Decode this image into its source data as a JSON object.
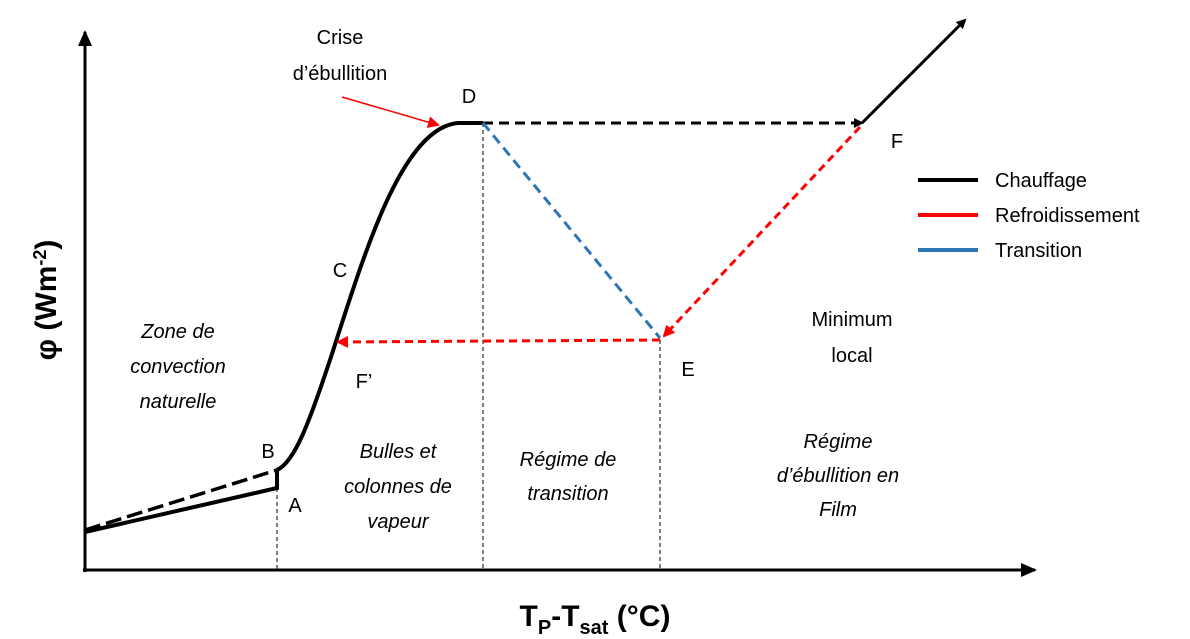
{
  "axes": {
    "y_label": "φ (Wm",
    "y_label_sup": "-2",
    "y_label_end": ")",
    "x_label_t": "T",
    "x_sub_p": "P",
    "x_mid": "-T",
    "x_sub_sat": "sat",
    "x_end": " (°C)"
  },
  "points": {
    "a": "A",
    "b": "B",
    "c": "C",
    "d": "D",
    "e": "E",
    "f": "F",
    "f_prime": "F’"
  },
  "annotation": [
    "Crise",
    "d’ébullition"
  ],
  "zones": {
    "natural_convection": [
      "Zone de",
      "convection",
      "naturelle"
    ],
    "bubbles": [
      "Bulles et",
      "colonnes de",
      "vapeur"
    ],
    "transition": [
      "Régime de",
      "transition"
    ],
    "film": [
      "Régime",
      "d’ébullition en",
      "Film"
    ],
    "minimum": [
      "Minimum",
      "local"
    ]
  },
  "legend": [
    {
      "name": "Chauffage",
      "color": "#000000"
    },
    {
      "name": "Refroidissement",
      "color": "#ff0000"
    },
    {
      "name": "Transition",
      "color": "#2e75b6"
    }
  ]
}
